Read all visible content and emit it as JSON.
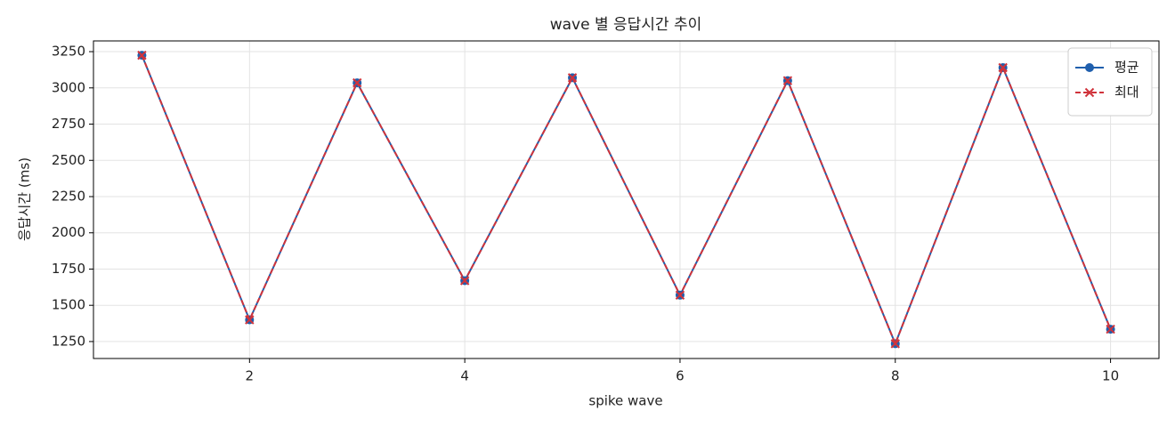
{
  "chart_data": {
    "type": "line",
    "title": "wave 별 응답시간 추이",
    "x_label": "spike wave",
    "y_label": "응답시간 (ms)",
    "x": [
      1,
      2,
      3,
      4,
      5,
      6,
      7,
      8,
      9,
      10
    ],
    "series": [
      {
        "name": "평균",
        "color": "#1f5fad",
        "marker": "o",
        "linestyle": "solid",
        "values": [
          3225,
          1400,
          3035,
          1670,
          3070,
          1570,
          3050,
          1235,
          3140,
          1335
        ]
      },
      {
        "name": "최대",
        "color": "#d0333b",
        "marker": "x",
        "linestyle": "dashed",
        "values": [
          3225,
          1400,
          3035,
          1670,
          3070,
          1570,
          3050,
          1235,
          3140,
          1335
        ]
      }
    ],
    "xlim": [
      0.55,
      10.45
    ],
    "ylim": [
      1133,
      3324
    ],
    "xticks": [
      2,
      4,
      6,
      8,
      10
    ],
    "yticks": [
      1250,
      1500,
      1750,
      2000,
      2250,
      2500,
      2750,
      3000,
      3250
    ],
    "grid": true,
    "legend": "upper right"
  }
}
